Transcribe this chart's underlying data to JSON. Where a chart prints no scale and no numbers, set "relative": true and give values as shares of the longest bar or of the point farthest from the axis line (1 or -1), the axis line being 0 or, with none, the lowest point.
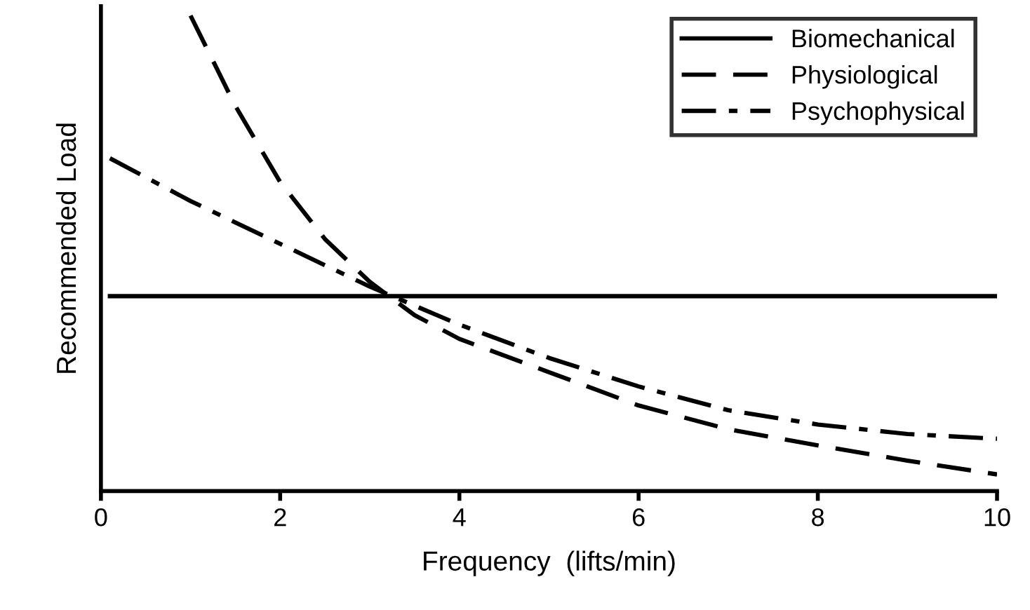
{
  "chart_data": {
    "type": "line",
    "xlabel": "Frequency  (lifts/min)",
    "ylabel": "Recommended Load",
    "relative": true,
    "xlim": [
      0,
      10
    ],
    "xticks": [
      0,
      2,
      4,
      6,
      8,
      10
    ],
    "legend": "top right",
    "grid": false,
    "marker": "none",
    "series": [
      {
        "name": "Biomechanical",
        "color": "#000000",
        "line_style": "solid",
        "x": [
          0.1,
          10
        ],
        "values": [
          0.41,
          0.41
        ]
      },
      {
        "name": "Physiological",
        "color": "#000000",
        "line_style": "dashed",
        "x": [
          1,
          1.5,
          2,
          2.5,
          3,
          3.5,
          4,
          5,
          6,
          7,
          8,
          9,
          10
        ],
        "values": [
          1.0,
          0.81,
          0.65,
          0.53,
          0.44,
          0.37,
          0.32,
          0.25,
          0.18,
          0.13,
          0.096,
          0.064,
          0.035
        ]
      },
      {
        "name": "Psychophysical",
        "color": "#000000",
        "line_style": "dashdot",
        "x": [
          0.1,
          1,
          2,
          3,
          4,
          5,
          6,
          7,
          8,
          9,
          10
        ],
        "values": [
          0.7,
          0.61,
          0.52,
          0.43,
          0.35,
          0.28,
          0.22,
          0.17,
          0.14,
          0.12,
          0.11
        ]
      }
    ]
  }
}
